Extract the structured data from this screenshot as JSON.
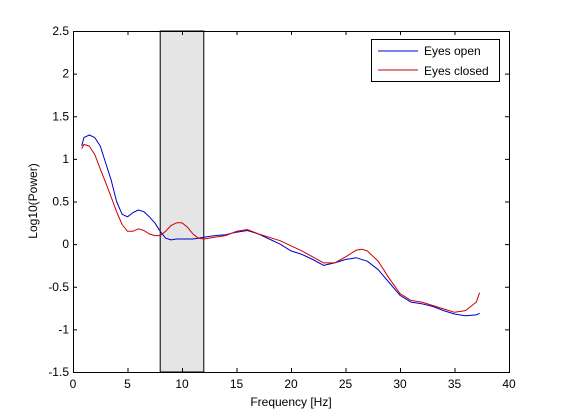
{
  "chart_data": {
    "type": "line",
    "title": "",
    "xlabel": "Frequency [Hz]",
    "ylabel": "Log10(Power)",
    "xlim": [
      0,
      40
    ],
    "ylim": [
      -1.5,
      2.5
    ],
    "xticks": [
      0,
      5,
      10,
      15,
      20,
      25,
      30,
      35,
      40
    ],
    "yticks": [
      -1.5,
      -1,
      -0.5,
      0,
      0.5,
      1,
      1.5,
      2,
      2.5
    ],
    "xtick_labels": [
      "0",
      "5",
      "10",
      "15",
      "20",
      "25",
      "30",
      "35",
      "40"
    ],
    "ytick_labels": [
      "-1.5",
      "-1",
      "-0.5",
      "0",
      "0.5",
      "1",
      "1.5",
      "2",
      "2.5"
    ],
    "grid": false,
    "legend_position": "top-right",
    "shaded_band": {
      "x_start": 8,
      "x_end": 12,
      "color": "#e5e5e5"
    },
    "series": [
      {
        "name": "Eyes open",
        "color": "#0000cc",
        "x": [
          0.8,
          1.0,
          1.5,
          2.0,
          2.5,
          3.0,
          3.5,
          4.0,
          4.5,
          5.0,
          5.5,
          6.0,
          6.5,
          7.0,
          7.5,
          8.0,
          8.5,
          9.0,
          9.5,
          10.0,
          10.5,
          11.0,
          11.5,
          12.0,
          13.0,
          14.0,
          15.0,
          16.0,
          17.0,
          18.0,
          19.0,
          20.0,
          21.0,
          22.0,
          23.0,
          24.0,
          25.0,
          26.0,
          27.0,
          28.0,
          29.0,
          30.0,
          31.0,
          32.0,
          33.0,
          34.0,
          35.0,
          36.0,
          37.0,
          37.3
        ],
        "y": [
          1.15,
          1.25,
          1.28,
          1.25,
          1.15,
          0.95,
          0.75,
          0.5,
          0.35,
          0.32,
          0.37,
          0.4,
          0.38,
          0.32,
          0.25,
          0.15,
          0.07,
          0.05,
          0.06,
          0.06,
          0.06,
          0.06,
          0.07,
          0.08,
          0.1,
          0.11,
          0.14,
          0.16,
          0.12,
          0.06,
          0.0,
          -0.08,
          -0.12,
          -0.18,
          -0.25,
          -0.22,
          -0.18,
          -0.16,
          -0.2,
          -0.3,
          -0.45,
          -0.6,
          -0.68,
          -0.7,
          -0.73,
          -0.78,
          -0.82,
          -0.84,
          -0.83,
          -0.81
        ]
      },
      {
        "name": "Eyes closed",
        "color": "#cc0000",
        "x": [
          0.8,
          1.0,
          1.5,
          2.0,
          2.5,
          3.0,
          3.5,
          4.0,
          4.5,
          5.0,
          5.5,
          6.0,
          6.5,
          7.0,
          7.5,
          8.0,
          8.5,
          9.0,
          9.5,
          10.0,
          10.5,
          11.0,
          11.5,
          12.0,
          13.0,
          14.0,
          15.0,
          16.0,
          17.0,
          18.0,
          19.0,
          20.0,
          21.0,
          22.0,
          23.0,
          24.0,
          25.0,
          26.0,
          26.5,
          27.0,
          28.0,
          29.0,
          30.0,
          31.0,
          32.0,
          33.0,
          34.0,
          35.0,
          36.0,
          37.0,
          37.3
        ],
        "y": [
          1.12,
          1.17,
          1.15,
          1.05,
          0.88,
          0.72,
          0.55,
          0.38,
          0.23,
          0.15,
          0.15,
          0.18,
          0.16,
          0.12,
          0.1,
          0.1,
          0.15,
          0.22,
          0.25,
          0.25,
          0.2,
          0.12,
          0.07,
          0.06,
          0.08,
          0.1,
          0.15,
          0.17,
          0.12,
          0.08,
          0.04,
          -0.02,
          -0.08,
          -0.15,
          -0.22,
          -0.22,
          -0.15,
          -0.07,
          -0.06,
          -0.08,
          -0.2,
          -0.4,
          -0.58,
          -0.66,
          -0.68,
          -0.72,
          -0.76,
          -0.8,
          -0.78,
          -0.68,
          -0.57
        ]
      }
    ]
  }
}
